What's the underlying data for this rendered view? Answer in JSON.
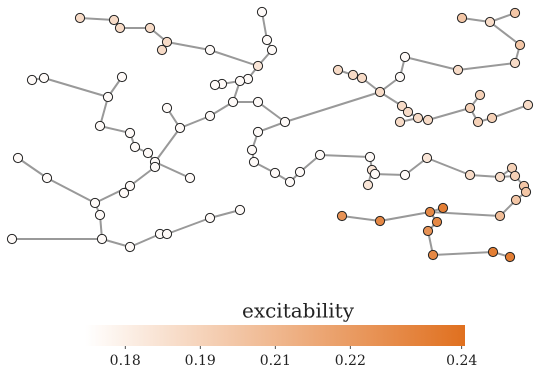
{
  "chart_data": {
    "type": "network",
    "colorbar_label": "excitability",
    "clim": [
      0.1727,
      0.2416
    ],
    "cticks": [
      {
        "value": 0.18,
        "label": "0.18"
      },
      {
        "value": 0.1936,
        "label": "0.19"
      },
      {
        "value": 0.2072,
        "label": "0.21"
      },
      {
        "value": 0.2208,
        "label": "0.22"
      },
      {
        "value": 0.241,
        "label": "0.24"
      }
    ],
    "colormap": [
      "#ffffff",
      "#e0701f"
    ],
    "edge_color": "#999999",
    "values": [
      0.19,
      0.19,
      0.19,
      0.19,
      0.19,
      0.19,
      0.175,
      0.185,
      0.175,
      0.175,
      0.175,
      0.175,
      0.175,
      0.175,
      0.175,
      0.175,
      0.175,
      0.175,
      0.175,
      0.175,
      0.175,
      0.175,
      0.175,
      0.175,
      0.175,
      0.175,
      0.175,
      0.175,
      0.175,
      0.185,
      0.185,
      0.175,
      0.175,
      0.185,
      0.19,
      0.19,
      0.195,
      0.195,
      0.2,
      0.2,
      0.2,
      0.205,
      0.19,
      0.19,
      0.19,
      0.19,
      0.175,
      0.175,
      0.19,
      0.19,
      0.2,
      0.19,
      0.2,
      0.2,
      0.19,
      0.19,
      0.19,
      0.19,
      0.19,
      0.195,
      0.195,
      0.195,
      0.195,
      0.19,
      0.225,
      0.23,
      0.23,
      0.235,
      0.23,
      0.225,
      0.23,
      0.235,
      0.235,
      0.175,
      0.175,
      0.175,
      0.175,
      0.175,
      0.175,
      0.175,
      0.175,
      0.175,
      0.175,
      0.175,
      0.175,
      0.175,
      0.175,
      0.175,
      0.175,
      0.175,
      0.175,
      0.175,
      0.175,
      0.175,
      0.175,
      0.175,
      0.175
    ]
  }
}
